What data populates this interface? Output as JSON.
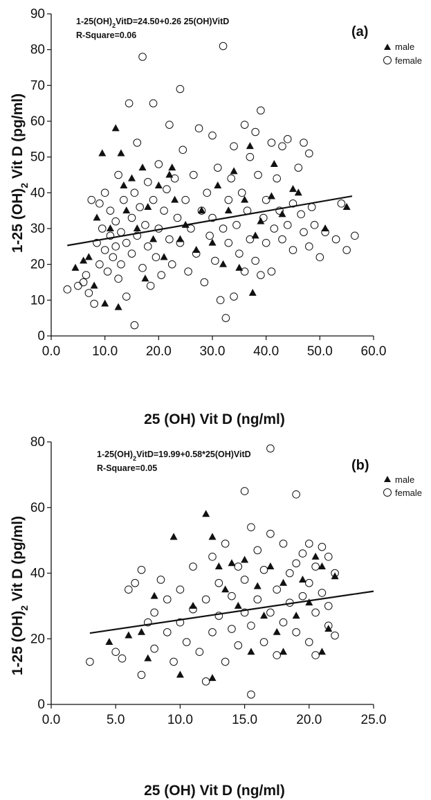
{
  "figure": {
    "panels": [
      {
        "panel_label": "(a)",
        "equation_html": "1-25(OH)<tspan baseline-shift='sub' font-size='9'>2</tspan>VitD=24.50+0.26 25(OH)VitD",
        "equation": "1-25(OH)2VitD=24.50+0.26 25(OH)VitD",
        "r_square": "R-Square=0.06",
        "legend": {
          "male": "male",
          "female": "female"
        }
      },
      {
        "panel_label": "(b)",
        "equation": "1-25(OH)2VitD=19.99+0.58*25(OH)VitD",
        "r_square": "R-Square=0.05",
        "legend": {
          "male": "male",
          "female": "female"
        }
      }
    ]
  },
  "chart_data": [
    {
      "type": "scatter",
      "panel": "(a)",
      "xlabel": "25 (OH) Vit D (ng/ml)",
      "ylabel": "1-25 (OH)2 Vit D (pg/ml)",
      "xlim": [
        0,
        60
      ],
      "ylim": [
        0,
        90
      ],
      "x_ticks": [
        "0.0",
        "10.0",
        "20.0",
        "30.0",
        "40.0",
        "50.0",
        "60.0"
      ],
      "y_ticks": [
        "0",
        "10",
        "20",
        "30",
        "40",
        "50",
        "60",
        "70",
        "80",
        "90"
      ],
      "legend_position": "top-right outside",
      "grid": false,
      "regression": {
        "intercept": 24.5,
        "slope": 0.26,
        "x_range": [
          3,
          56
        ]
      },
      "series": [
        {
          "name": "male",
          "marker": "filled-triangle",
          "points": [
            [
              4.5,
              19
            ],
            [
              6,
              21
            ],
            [
              7,
              22
            ],
            [
              8,
              14
            ],
            [
              8.5,
              33
            ],
            [
              9.5,
              51
            ],
            [
              10,
              9
            ],
            [
              11,
              30
            ],
            [
              12,
              58
            ],
            [
              12.5,
              8
            ],
            [
              13,
              51
            ],
            [
              13.5,
              42
            ],
            [
              14,
              35
            ],
            [
              15,
              44
            ],
            [
              16,
              30
            ],
            [
              17,
              47
            ],
            [
              17.5,
              16
            ],
            [
              18,
              36
            ],
            [
              19,
              27
            ],
            [
              20,
              42
            ],
            [
              21,
              22
            ],
            [
              22,
              45
            ],
            [
              22.5,
              47
            ],
            [
              23,
              38
            ],
            [
              24,
              27
            ],
            [
              25,
              31
            ],
            [
              27,
              24
            ],
            [
              28,
              35
            ],
            [
              30,
              26
            ],
            [
              31,
              42
            ],
            [
              32,
              20
            ],
            [
              33,
              35
            ],
            [
              34,
              46
            ],
            [
              35,
              19
            ],
            [
              36,
              38
            ],
            [
              37,
              53
            ],
            [
              37.5,
              12
            ],
            [
              38,
              28
            ],
            [
              39,
              32
            ],
            [
              41,
              39
            ],
            [
              41.5,
              48
            ],
            [
              43,
              34
            ],
            [
              45,
              41
            ],
            [
              46,
              40
            ],
            [
              51,
              30
            ],
            [
              55,
              36
            ]
          ]
        },
        {
          "name": "female",
          "marker": "open-circle",
          "points": [
            [
              3,
              13
            ],
            [
              5,
              14
            ],
            [
              6,
              15
            ],
            [
              6.5,
              17
            ],
            [
              7,
              12
            ],
            [
              7.5,
              38
            ],
            [
              8,
              9
            ],
            [
              8.5,
              26
            ],
            [
              9,
              20
            ],
            [
              9,
              37
            ],
            [
              9.5,
              30
            ],
            [
              10,
              24
            ],
            [
              10,
              40
            ],
            [
              10.5,
              18
            ],
            [
              11,
              28
            ],
            [
              11,
              35
            ],
            [
              11.5,
              22
            ],
            [
              12,
              25
            ],
            [
              12,
              32
            ],
            [
              12.5,
              16
            ],
            [
              12.5,
              45
            ],
            [
              13,
              20
            ],
            [
              13,
              29
            ],
            [
              13.5,
              38
            ],
            [
              14,
              11
            ],
            [
              14,
              26
            ],
            [
              14.5,
              65
            ],
            [
              15,
              23
            ],
            [
              15,
              33
            ],
            [
              15.5,
              3
            ],
            [
              15.5,
              40
            ],
            [
              16,
              28
            ],
            [
              16,
              54
            ],
            [
              16.5,
              36
            ],
            [
              17,
              78
            ],
            [
              17,
              19
            ],
            [
              17.5,
              31
            ],
            [
              18,
              43
            ],
            [
              18,
              25
            ],
            [
              18.5,
              14
            ],
            [
              19,
              38
            ],
            [
              19,
              65
            ],
            [
              19.5,
              22
            ],
            [
              20,
              48
            ],
            [
              20,
              30
            ],
            [
              20.5,
              17
            ],
            [
              21,
              35
            ],
            [
              21.5,
              41
            ],
            [
              22,
              27
            ],
            [
              22,
              59
            ],
            [
              22.5,
              20
            ],
            [
              23,
              44
            ],
            [
              23.5,
              33
            ],
            [
              24,
              69
            ],
            [
              24,
              26
            ],
            [
              24.5,
              52
            ],
            [
              25,
              38
            ],
            [
              25.5,
              18
            ],
            [
              26,
              30
            ],
            [
              26.5,
              45
            ],
            [
              27,
              23
            ],
            [
              27.5,
              58
            ],
            [
              28,
              35
            ],
            [
              28.5,
              15
            ],
            [
              29,
              40
            ],
            [
              29.5,
              28
            ],
            [
              30,
              56
            ],
            [
              30,
              33
            ],
            [
              30.5,
              21
            ],
            [
              31,
              47
            ],
            [
              31.5,
              10
            ],
            [
              32,
              81
            ],
            [
              32,
              30
            ],
            [
              32.5,
              5
            ],
            [
              33,
              38
            ],
            [
              33,
              26
            ],
            [
              33.5,
              44
            ],
            [
              34,
              11
            ],
            [
              34,
              53
            ],
            [
              34.5,
              31
            ],
            [
              35,
              23
            ],
            [
              35.5,
              40
            ],
            [
              36,
              59
            ],
            [
              36,
              18
            ],
            [
              36.5,
              35
            ],
            [
              37,
              50
            ],
            [
              37,
              27
            ],
            [
              38,
              57
            ],
            [
              38,
              21
            ],
            [
              38.5,
              45
            ],
            [
              39,
              63
            ],
            [
              39,
              17
            ],
            [
              39.5,
              33
            ],
            [
              40,
              38
            ],
            [
              40,
              26
            ],
            [
              41,
              54
            ],
            [
              41,
              18
            ],
            [
              41.5,
              30
            ],
            [
              42,
              44
            ],
            [
              42.5,
              35
            ],
            [
              43,
              53
            ],
            [
              43,
              27
            ],
            [
              44,
              55
            ],
            [
              44,
              31
            ],
            [
              45,
              37
            ],
            [
              45,
              24
            ],
            [
              46,
              47
            ],
            [
              46.5,
              34
            ],
            [
              47,
              54
            ],
            [
              47,
              29
            ],
            [
              48,
              51
            ],
            [
              48,
              25
            ],
            [
              48.5,
              36
            ],
            [
              49,
              31
            ],
            [
              50,
              22
            ],
            [
              51,
              29
            ],
            [
              53,
              27
            ],
            [
              54,
              37
            ],
            [
              55,
              24
            ],
            [
              56.5,
              28
            ]
          ]
        }
      ]
    },
    {
      "type": "scatter",
      "panel": "(b)",
      "xlabel": "25 (OH) Vit D (ng/ml)",
      "ylabel": "1-25 (OH)2 Vit D (pg/ml)",
      "xlim": [
        0,
        25
      ],
      "ylim": [
        0,
        80
      ],
      "x_ticks": [
        "0.0",
        "5.0",
        "10.0",
        "15.0",
        "20.0",
        "25.0"
      ],
      "y_ticks": [
        "0",
        "20",
        "40",
        "60",
        "80"
      ],
      "legend_position": "top-right outside",
      "grid": false,
      "regression": {
        "intercept": 19.99,
        "slope": 0.58,
        "x_range": [
          3,
          25
        ]
      },
      "series": [
        {
          "name": "male",
          "marker": "filled-triangle",
          "points": [
            [
              4.5,
              19
            ],
            [
              6,
              21
            ],
            [
              7,
              22
            ],
            [
              7.5,
              14
            ],
            [
              8,
              33
            ],
            [
              9.5,
              51
            ],
            [
              10,
              9
            ],
            [
              11,
              30
            ],
            [
              12,
              58
            ],
            [
              12.5,
              8
            ],
            [
              12.5,
              51
            ],
            [
              13,
              42
            ],
            [
              13.5,
              35
            ],
            [
              14,
              43
            ],
            [
              14.5,
              30
            ],
            [
              15,
              44
            ],
            [
              15.5,
              16
            ],
            [
              16,
              36
            ],
            [
              16.5,
              27
            ],
            [
              17,
              42
            ],
            [
              17.5,
              22
            ],
            [
              18,
              37
            ],
            [
              18,
              16
            ],
            [
              19,
              27
            ],
            [
              19.5,
              38
            ],
            [
              20,
              31
            ],
            [
              20.5,
              45
            ],
            [
              21,
              42
            ],
            [
              21,
              16
            ],
            [
              21.5,
              23
            ],
            [
              22,
              39
            ]
          ]
        },
        {
          "name": "female",
          "marker": "open-circle",
          "points": [
            [
              3,
              13
            ],
            [
              5,
              16
            ],
            [
              5.5,
              14
            ],
            [
              6,
              35
            ],
            [
              6.5,
              37
            ],
            [
              7,
              9
            ],
            [
              7,
              41
            ],
            [
              7.5,
              25
            ],
            [
              8,
              28
            ],
            [
              8,
              17
            ],
            [
              8.5,
              38
            ],
            [
              9,
              22
            ],
            [
              9,
              32
            ],
            [
              9.5,
              13
            ],
            [
              10,
              35
            ],
            [
              10,
              25
            ],
            [
              10.5,
              19
            ],
            [
              11,
              42
            ],
            [
              11,
              29
            ],
            [
              11.5,
              16
            ],
            [
              12,
              32
            ],
            [
              12,
              7
            ],
            [
              12.5,
              22
            ],
            [
              12.5,
              45
            ],
            [
              13,
              27
            ],
            [
              13,
              37
            ],
            [
              13.5,
              13
            ],
            [
              13.5,
              49
            ],
            [
              14,
              33
            ],
            [
              14,
              23
            ],
            [
              14.5,
              18
            ],
            [
              14.5,
              42
            ],
            [
              15,
              65
            ],
            [
              15,
              28
            ],
            [
              15,
              38
            ],
            [
              15.5,
              3
            ],
            [
              15.5,
              54
            ],
            [
              15.5,
              24
            ],
            [
              16,
              47
            ],
            [
              16,
              32
            ],
            [
              16.5,
              19
            ],
            [
              16.5,
              41
            ],
            [
              17,
              78
            ],
            [
              17,
              52
            ],
            [
              17,
              28
            ],
            [
              17.5,
              35
            ],
            [
              17.5,
              15
            ],
            [
              18,
              49
            ],
            [
              18,
              25
            ],
            [
              18.5,
              40
            ],
            [
              18.5,
              31
            ],
            [
              19,
              64
            ],
            [
              19,
              22
            ],
            [
              19.5,
              46
            ],
            [
              19.5,
              33
            ],
            [
              20,
              19
            ],
            [
              20,
              49
            ],
            [
              20,
              37
            ],
            [
              20.5,
              28
            ],
            [
              20.5,
              15
            ],
            [
              21,
              34
            ],
            [
              21,
              48
            ],
            [
              21.5,
              24
            ],
            [
              21.5,
              30
            ],
            [
              22,
              40
            ],
            [
              22,
              21
            ],
            [
              21.5,
              45
            ],
            [
              20.5,
              42
            ],
            [
              19,
              43
            ]
          ]
        }
      ]
    }
  ]
}
